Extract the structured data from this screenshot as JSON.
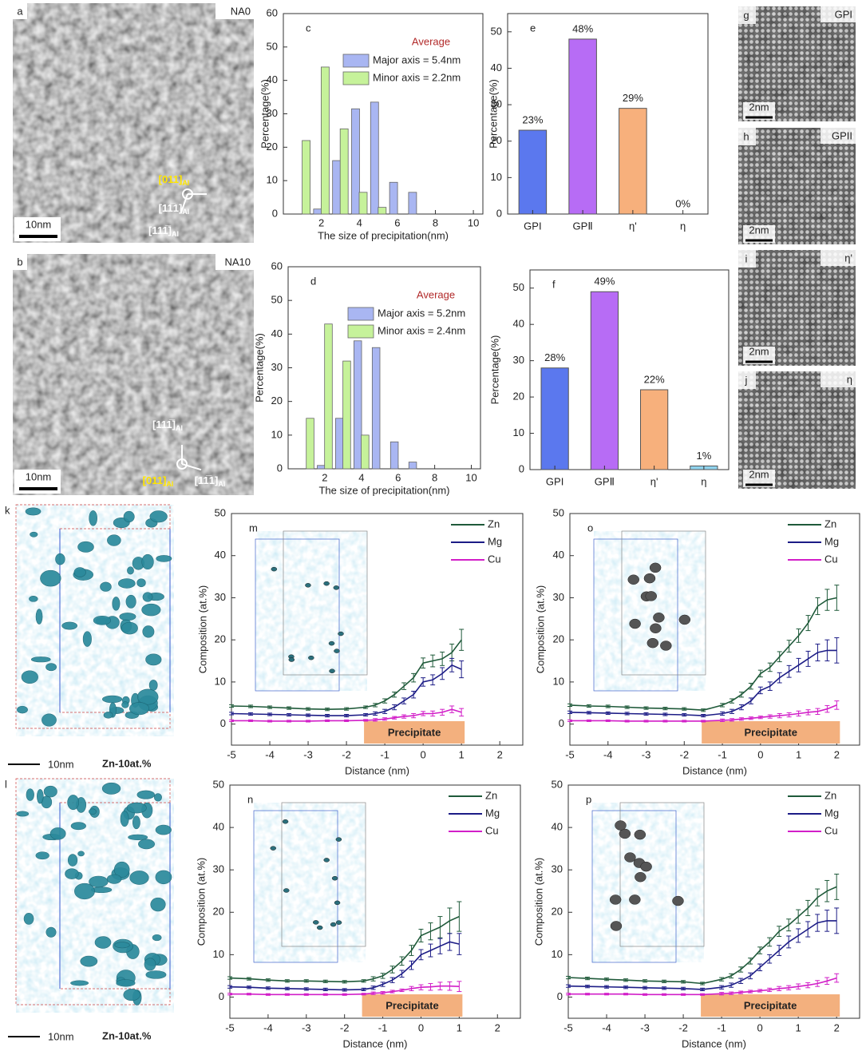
{
  "panels": [
    {
      "panel": "a",
      "tag": "NA0",
      "scale": "10nm",
      "axes": [
        {
          "text": "[011]",
          "sub": "Al"
        },
        {
          "text": "[11̅1]",
          "sub": "Al"
        },
        {
          "text": "[111̅]",
          "sub": "Al"
        }
      ]
    },
    {
      "panel": "b",
      "tag": "NA10",
      "scale": "10nm",
      "axes": [
        {
          "text": "[011]",
          "sub": "Al"
        },
        {
          "text": "[11̅1]",
          "sub": "Al"
        },
        {
          "text": "[111̅]",
          "sub": "Al"
        }
      ]
    },
    {
      "panel": "g",
      "tag": "GPI",
      "scale": "2nm"
    },
    {
      "panel": "h",
      "tag": "GPII",
      "scale": "2nm"
    },
    {
      "panel": "i",
      "tag": "η'",
      "scale": "2nm"
    },
    {
      "panel": "j",
      "tag": "η",
      "scale": "2nm"
    },
    {
      "panel": "k",
      "scale": "10nm",
      "note": "Zn-10at.%"
    },
    {
      "panel": "l",
      "scale": "10nm",
      "note": "Zn-10at.%"
    }
  ],
  "chart_data": [
    {
      "type": "bar",
      "panel": "c",
      "annotation": "Average",
      "xlabel": "The size of precipitation(nm)",
      "ylabel": "Percentage(%)",
      "xlim": [
        0,
        10.5
      ],
      "xticks": [
        2,
        4,
        6,
        8,
        10
      ],
      "ylim": [
        0,
        60
      ],
      "yticks": [
        0,
        10,
        20,
        30,
        40,
        50,
        60
      ],
      "series": [
        {
          "name": "Major axis  = 5.4nm",
          "color": "#a9b6f2",
          "x": [
            1.8,
            2.8,
            3.8,
            4.8,
            5.8,
            6.8
          ],
          "values": [
            1.5,
            16,
            31.5,
            33.5,
            9.5,
            6.5
          ]
        },
        {
          "name": "Minor axis  = 2.2nm",
          "color": "#c6f29a",
          "x": [
            1.2,
            2.2,
            3.2,
            4.2,
            5.2
          ],
          "values": [
            22,
            44,
            25.5,
            6.5,
            2
          ]
        }
      ]
    },
    {
      "type": "bar",
      "panel": "d",
      "annotation": "Average",
      "xlabel": "The size of precipitation(nm)",
      "ylabel": "Percentage(%)",
      "xlim": [
        0,
        10.5
      ],
      "xticks": [
        2,
        4,
        6,
        8,
        10
      ],
      "ylim": [
        0,
        60
      ],
      "yticks": [
        0,
        10,
        20,
        30,
        40,
        50,
        60
      ],
      "series": [
        {
          "name": "Major axis = 5.2nm",
          "color": "#a9b6f2",
          "x": [
            1.8,
            2.8,
            3.8,
            4.8,
            5.8,
            6.8
          ],
          "values": [
            1,
            15,
            38,
            36,
            8,
            2
          ]
        },
        {
          "name": "Minor axis = 2.4nm",
          "color": "#c6f29a",
          "x": [
            1.2,
            2.2,
            3.2,
            4.2
          ],
          "values": [
            15,
            43,
            32,
            10
          ]
        }
      ]
    },
    {
      "type": "bar",
      "panel": "e",
      "ylabel": "Percentage(%)",
      "categories": [
        "GPI",
        "GPⅡ",
        "η'",
        "η"
      ],
      "values": [
        23,
        48,
        29,
        0
      ],
      "value_labels": [
        "23%",
        "48%",
        "29%",
        "0%"
      ],
      "colors": [
        "#5b78ee",
        "#b76cf5",
        "#f7b07c",
        "#8fd3ee"
      ],
      "ylim": [
        0,
        55
      ],
      "yticks": [
        0,
        10,
        20,
        30,
        40,
        50
      ]
    },
    {
      "type": "bar",
      "panel": "f",
      "ylabel": "Percentage(%)",
      "categories": [
        "GPI",
        "GPⅡ",
        "η'",
        "η"
      ],
      "values": [
        28,
        49,
        22,
        1
      ],
      "value_labels": [
        "28%",
        "49%",
        "22%",
        "1%"
      ],
      "colors": [
        "#5b78ee",
        "#b76cf5",
        "#f7b07c",
        "#8fd3ee"
      ],
      "ylim": [
        0,
        55
      ],
      "yticks": [
        0,
        10,
        20,
        30,
        40,
        50
      ]
    },
    {
      "type": "line",
      "panel": "m",
      "annotation": "Precipitate",
      "xlabel": "Distance (nm)",
      "ylabel": "Composition (at.%)",
      "xlim": [
        -5,
        2.6
      ],
      "xticks": [
        -5,
        -4,
        -3,
        -2,
        -1,
        0,
        1,
        2
      ],
      "ylim": [
        -5,
        50
      ],
      "yticks": [
        0,
        10,
        20,
        30,
        40,
        50
      ],
      "x": [
        -5,
        -4.5,
        -4,
        -3.5,
        -3,
        -2.5,
        -2,
        -1.5,
        -1.25,
        -1,
        -0.75,
        -0.5,
        -0.25,
        0,
        0.25,
        0.5,
        0.75,
        1
      ],
      "series": [
        {
          "name": "Zn",
          "color": "#1f5a3a",
          "values": [
            4.3,
            4.2,
            4.0,
            3.8,
            3.6,
            3.5,
            3.6,
            4.0,
            4.5,
            5.5,
            7,
            9,
            11,
            14.5,
            15,
            15.5,
            17,
            20
          ],
          "errors": [
            0.3,
            0.3,
            0.3,
            0.3,
            0.3,
            0.3,
            0.3,
            0.3,
            0.4,
            0.5,
            0.6,
            0.8,
            1,
            1.2,
            1.4,
            1.6,
            2,
            2.5
          ]
        },
        {
          "name": "Mg",
          "color": "#1c1c86",
          "values": [
            2.5,
            2.4,
            2.3,
            2.2,
            2.1,
            2.0,
            2.0,
            2.2,
            2.5,
            3,
            4,
            5.5,
            7,
            10,
            10.5,
            12,
            14,
            13
          ],
          "errors": [
            0.3,
            0.3,
            0.3,
            0.3,
            0.3,
            0.3,
            0.3,
            0.3,
            0.4,
            0.5,
            0.6,
            0.7,
            0.8,
            1,
            1.2,
            1.4,
            1.6,
            2
          ]
        },
        {
          "name": "Cu",
          "color": "#d21fc8",
          "values": [
            0.8,
            0.8,
            0.7,
            0.7,
            0.7,
            0.8,
            0.8,
            0.9,
            1,
            1.2,
            1.5,
            1.8,
            2,
            2.5,
            2.5,
            2.8,
            3.5,
            2.8
          ],
          "errors": [
            0.2,
            0.2,
            0.2,
            0.2,
            0.2,
            0.2,
            0.2,
            0.2,
            0.3,
            0.3,
            0.3,
            0.4,
            0.5,
            0.5,
            0.6,
            0.7,
            0.8,
            0.9
          ]
        }
      ]
    },
    {
      "type": "line",
      "panel": "n",
      "annotation": "Precipitate",
      "xlabel": "Distance (nm)",
      "ylabel": "Composition (at.%)",
      "xlim": [
        -5,
        2.6
      ],
      "xticks": [
        -5,
        -4,
        -3,
        -2,
        -1,
        0,
        1,
        2
      ],
      "ylim": [
        -5,
        50
      ],
      "yticks": [
        0,
        10,
        20,
        30,
        40,
        50
      ],
      "x": [
        -5,
        -4.5,
        -4,
        -3.5,
        -3,
        -2.5,
        -2,
        -1.5,
        -1.25,
        -1,
        -0.75,
        -0.5,
        -0.25,
        0,
        0.25,
        0.5,
        0.75,
        1
      ],
      "series": [
        {
          "name": "Zn",
          "color": "#1f5a3a",
          "values": [
            4.5,
            4.3,
            4.0,
            3.8,
            3.8,
            3.7,
            3.6,
            3.8,
            4.3,
            5,
            6.5,
            8.5,
            11,
            14.5,
            15.5,
            16.5,
            18,
            19
          ],
          "errors": [
            0.3,
            0.3,
            0.3,
            0.3,
            0.3,
            0.3,
            0.3,
            0.3,
            0.5,
            0.6,
            0.8,
            1,
            1.2,
            1.5,
            2,
            2.5,
            3,
            3.5
          ]
        },
        {
          "name": "Mg",
          "color": "#1c1c86",
          "values": [
            2.4,
            2.3,
            2.1,
            2.0,
            1.9,
            1.8,
            1.7,
            1.8,
            2.2,
            3,
            4,
            5.5,
            7.5,
            10,
            11,
            12,
            13,
            12.5
          ],
          "errors": [
            0.3,
            0.3,
            0.3,
            0.3,
            0.3,
            0.3,
            0.3,
            0.3,
            0.4,
            0.5,
            0.6,
            0.8,
            1,
            1.2,
            1.5,
            1.8,
            2,
            2.5
          ]
        },
        {
          "name": "Cu",
          "color": "#d21fc8",
          "values": [
            0.7,
            0.7,
            0.6,
            0.6,
            0.6,
            0.6,
            0.6,
            0.7,
            0.9,
            1,
            1.3,
            1.6,
            2,
            2.3,
            2.4,
            2.6,
            2.6,
            2.5
          ],
          "errors": [
            0.2,
            0.2,
            0.2,
            0.2,
            0.2,
            0.2,
            0.2,
            0.2,
            0.3,
            0.3,
            0.3,
            0.3,
            0.5,
            0.6,
            0.8,
            0.9,
            1,
            1.2
          ]
        }
      ]
    },
    {
      "type": "line",
      "panel": "o",
      "annotation": "Precipitate",
      "xlabel": "Distance (nm)",
      "ylabel": "Composition (at.%)",
      "xlim": [
        -5,
        2.6
      ],
      "xticks": [
        -5,
        -4,
        -3,
        -2,
        -1,
        0,
        1,
        2
      ],
      "ylim": [
        -5,
        50
      ],
      "yticks": [
        0,
        10,
        20,
        30,
        40,
        50
      ],
      "x": [
        -5,
        -4.5,
        -4,
        -3.5,
        -3,
        -2.5,
        -2,
        -1.5,
        -1,
        -0.75,
        -0.5,
        -0.25,
        0,
        0.25,
        0.5,
        0.75,
        1,
        1.25,
        1.5,
        1.75,
        2
      ],
      "series": [
        {
          "name": "Zn",
          "color": "#1f5a3a",
          "values": [
            4.5,
            4.3,
            4.2,
            4.0,
            3.8,
            3.7,
            3.6,
            3.3,
            4.5,
            5.5,
            7,
            9,
            12,
            13.5,
            16,
            18.5,
            21,
            24,
            28,
            29.5,
            30
          ],
          "errors": [
            0.3,
            0.3,
            0.3,
            0.3,
            0.3,
            0.3,
            0.3,
            0.3,
            0.4,
            0.5,
            0.6,
            0.7,
            0.8,
            1,
            1.2,
            1.4,
            1.6,
            1.8,
            2,
            2.5,
            3
          ]
        },
        {
          "name": "Mg",
          "color": "#1c1c86",
          "values": [
            2.8,
            2.7,
            2.6,
            2.5,
            2.4,
            2.3,
            2.2,
            2.0,
            2.5,
            3,
            4,
            5.5,
            8,
            9,
            11,
            12.5,
            14,
            15.5,
            17,
            17.5,
            17.5
          ],
          "errors": [
            0.3,
            0.3,
            0.3,
            0.3,
            0.3,
            0.3,
            0.3,
            0.3,
            0.4,
            0.5,
            0.6,
            0.7,
            0.8,
            1,
            1.2,
            1.4,
            1.6,
            1.8,
            2,
            2.5,
            3
          ]
        },
        {
          "name": "Cu",
          "color": "#d21fc8",
          "values": [
            0.8,
            0.8,
            0.8,
            0.7,
            0.7,
            0.7,
            0.7,
            0.7,
            0.9,
            1,
            1.2,
            1.4,
            1.6,
            1.8,
            2,
            2.2,
            2.5,
            2.8,
            3,
            3.6,
            4.5
          ],
          "errors": [
            0.2,
            0.2,
            0.2,
            0.2,
            0.2,
            0.2,
            0.2,
            0.2,
            0.3,
            0.3,
            0.3,
            0.3,
            0.3,
            0.4,
            0.5,
            0.5,
            0.6,
            0.6,
            0.7,
            0.8,
            1
          ]
        }
      ]
    },
    {
      "type": "line",
      "panel": "p",
      "annotation": "Precipitate",
      "xlabel": "Distance (nm)",
      "ylabel": "Composition (at.%)",
      "xlim": [
        -5,
        2.6
      ],
      "xticks": [
        -5,
        -4,
        -3,
        -2,
        -1,
        0,
        1,
        2
      ],
      "ylim": [
        -5,
        50
      ],
      "yticks": [
        0,
        10,
        20,
        30,
        40,
        50
      ],
      "x": [
        -5,
        -4.5,
        -4,
        -3.5,
        -3,
        -2.5,
        -2,
        -1.5,
        -1,
        -0.75,
        -0.5,
        -0.25,
        0,
        0.25,
        0.5,
        0.75,
        1,
        1.25,
        1.5,
        1.75,
        2
      ],
      "series": [
        {
          "name": "Zn",
          "color": "#1f5a3a",
          "values": [
            4.6,
            4.4,
            4.2,
            4.0,
            3.8,
            3.7,
            3.6,
            3.2,
            4.2,
            5,
            6.5,
            8.5,
            11,
            13,
            15.5,
            17,
            19,
            21,
            23.5,
            25,
            26
          ],
          "errors": [
            0.3,
            0.3,
            0.3,
            0.3,
            0.3,
            0.3,
            0.3,
            0.3,
            0.4,
            0.5,
            0.6,
            0.7,
            0.8,
            1,
            1.2,
            1.4,
            1.6,
            1.8,
            2,
            2.5,
            3
          ]
        },
        {
          "name": "Mg",
          "color": "#1c1c86",
          "values": [
            2.6,
            2.5,
            2.4,
            2.3,
            2.2,
            2.1,
            2.0,
            1.8,
            2.3,
            2.8,
            3.8,
            5,
            7,
            9,
            11,
            13,
            14.5,
            16,
            17.5,
            18,
            18
          ],
          "errors": [
            0.3,
            0.3,
            0.3,
            0.3,
            0.3,
            0.3,
            0.3,
            0.3,
            0.4,
            0.5,
            0.6,
            0.7,
            0.8,
            1,
            1.2,
            1.4,
            1.6,
            1.8,
            2,
            2.5,
            3
          ]
        },
        {
          "name": "Cu",
          "color": "#d21fc8",
          "values": [
            0.7,
            0.7,
            0.7,
            0.7,
            0.6,
            0.6,
            0.6,
            0.6,
            0.8,
            0.9,
            1.1,
            1.3,
            1.5,
            1.7,
            2,
            2.2,
            2.5,
            2.8,
            3.2,
            3.8,
            4.5
          ],
          "errors": [
            0.2,
            0.2,
            0.2,
            0.2,
            0.2,
            0.2,
            0.2,
            0.2,
            0.3,
            0.3,
            0.3,
            0.3,
            0.3,
            0.4,
            0.5,
            0.5,
            0.6,
            0.6,
            0.7,
            0.8,
            1
          ]
        }
      ]
    }
  ]
}
